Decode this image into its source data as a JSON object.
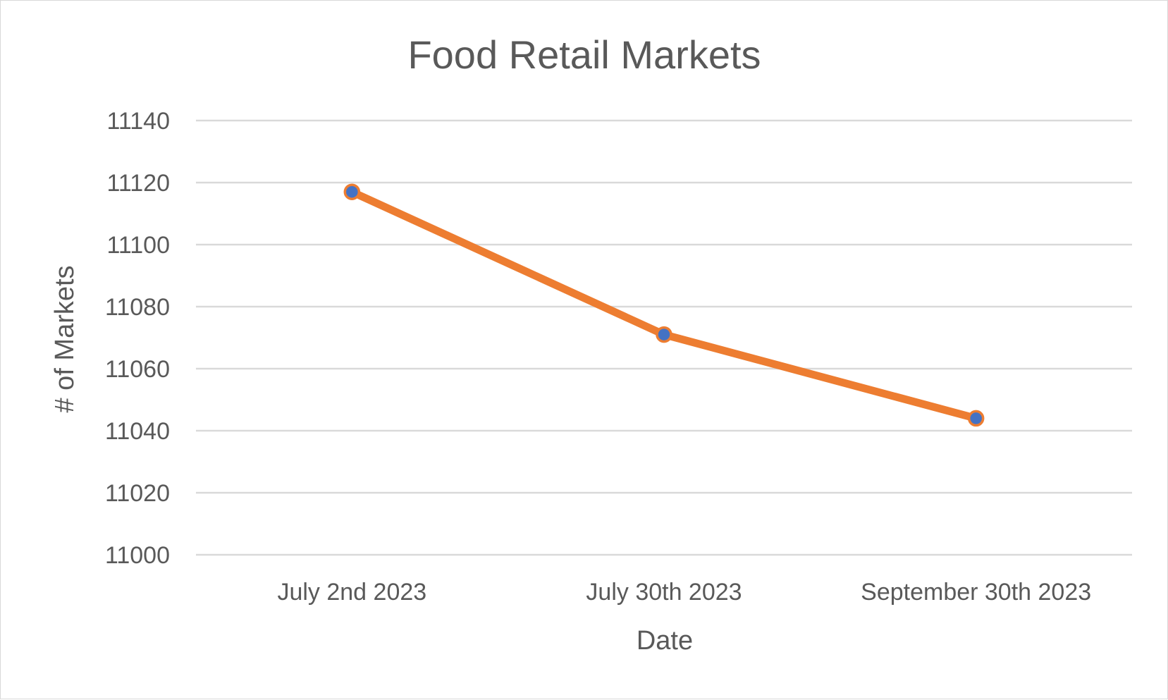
{
  "chart_data": {
    "type": "line",
    "title": "Food Retail Markets",
    "xlabel": "Date",
    "ylabel": "# of Markets",
    "categories": [
      "July 2nd 2023",
      "July 30th 2023",
      "September 30th 2023"
    ],
    "series": [
      {
        "values": [
          11117,
          11071,
          11044
        ]
      }
    ],
    "ylim": [
      11000,
      11140
    ],
    "yticks": [
      "11000",
      "11020",
      "11040",
      "11060",
      "11080",
      "11100",
      "11120",
      "11140"
    ],
    "grid": true,
    "legend": "none",
    "colors": {
      "line": "#ed7d31",
      "marker_fill": "#4472c4",
      "grid": "#d9d9d9",
      "text": "#595959"
    }
  }
}
